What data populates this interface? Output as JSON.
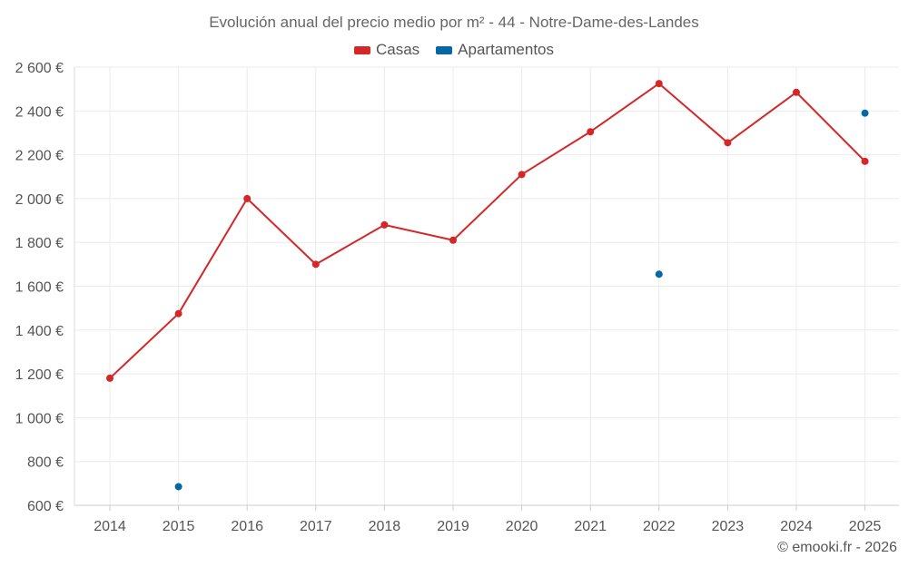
{
  "chart_data": {
    "type": "line",
    "title": "Evolución anual del precio medio por m² - 44 - Notre-Dame-des-Landes",
    "x": [
      "2014",
      "2015",
      "2016",
      "2017",
      "2018",
      "2019",
      "2020",
      "2021",
      "2022",
      "2023",
      "2024",
      "2025"
    ],
    "y_ticks": [
      "600 €",
      "800 €",
      "1 000 €",
      "1 200 €",
      "1 400 €",
      "1 600 €",
      "1 800 €",
      "2 000 €",
      "2 200 €",
      "2 400 €",
      "2 600 €"
    ],
    "ylim": [
      600,
      2600
    ],
    "grid": true,
    "legend_position": "top-center",
    "series": [
      {
        "name": "Casas",
        "color": "#d62728",
        "style": "line-markers",
        "values": [
          1180,
          1475,
          2000,
          1700,
          1880,
          1810,
          2110,
          2305,
          2525,
          2255,
          2485,
          2170
        ]
      },
      {
        "name": "Apartamentos",
        "color": "#0568a6",
        "style": "markers",
        "values": [
          null,
          685,
          null,
          null,
          null,
          null,
          null,
          null,
          1655,
          null,
          null,
          2390
        ]
      }
    ]
  },
  "credit": "© emooki.fr - 2026"
}
